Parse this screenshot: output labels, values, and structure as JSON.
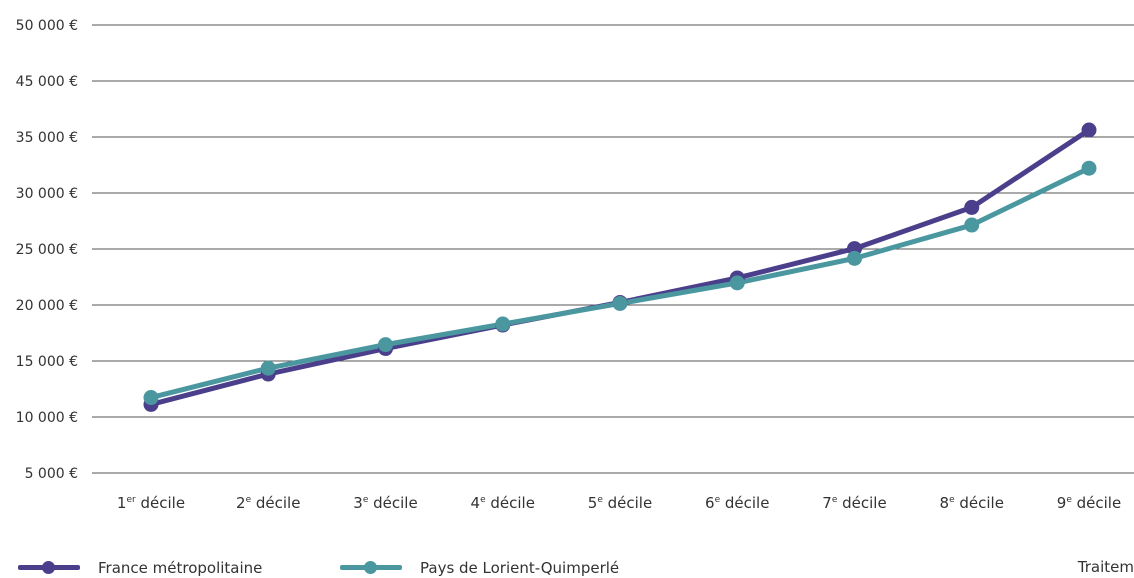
{
  "chart_data": {
    "type": "line",
    "categories": [
      {
        "num": "1",
        "sup": "er",
        "rest": " décile"
      },
      {
        "num": "2",
        "sup": "e",
        "rest": " décile"
      },
      {
        "num": "3",
        "sup": "e",
        "rest": " décile"
      },
      {
        "num": "4",
        "sup": "e",
        "rest": " décile"
      },
      {
        "num": "5",
        "sup": "e",
        "rest": " décile"
      },
      {
        "num": "6",
        "sup": "e",
        "rest": " décile"
      },
      {
        "num": "7",
        "sup": "e",
        "rest": " décile"
      },
      {
        "num": "8",
        "sup": "e",
        "rest": " décile"
      },
      {
        "num": "9",
        "sup": "e",
        "rest": " décile"
      }
    ],
    "y_tick_labels": [
      "5 000 €",
      "10 000 €",
      "15 000 €",
      "20 000 €",
      "25 000 €",
      "30 000 €",
      "35 000 €",
      "45 000 €",
      "50 000 €"
    ],
    "ylim": [
      5000,
      45000
    ],
    "series": [
      {
        "name": "France métropolitaine",
        "color": "#4b3f8c",
        "values": [
          12000,
          15100,
          17700,
          20100,
          22400,
          24900,
          27900,
          32100,
          40000
        ]
      },
      {
        "name": "Pays de Lorient-Quimperlé",
        "color": "#4a97a0",
        "values": [
          12700,
          15700,
          18100,
          20200,
          22300,
          24400,
          26900,
          30300,
          36100
        ]
      }
    ],
    "grid": true,
    "legend": "bottom-left"
  },
  "credit": "Traitem"
}
